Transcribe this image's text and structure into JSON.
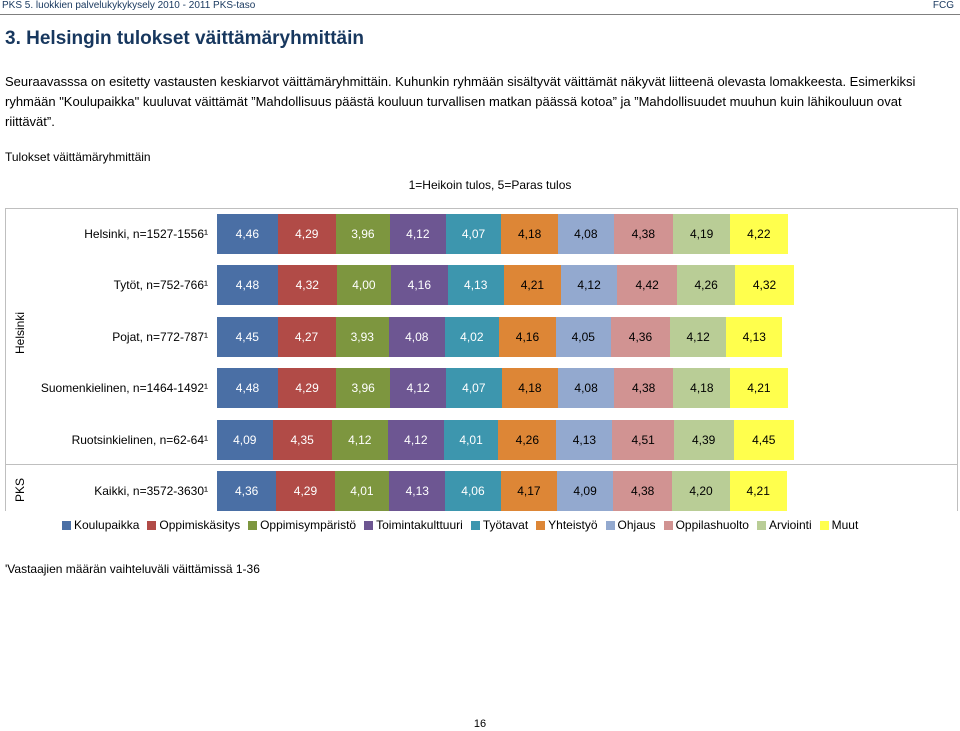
{
  "header": {
    "left_text": "PKS 5. luokkien palvelukykykysely 2010 - 2011 PKS-taso",
    "right_text": "FCG"
  },
  "heading": "3. Helsingin tulokset väittämäryhmittäin",
  "intro_lines": [
    "Seuraavasssa on esitetty vastausten keskiarvot väittämäryhmittäin. Kuhunkin ryhmään sisältyvät väittämät näkyvät liitteenä olevasta lomakkeesta. Esimerkiksi",
    "ryhmään \"Koulupaikka\" kuuluvat väittämät ”Mahdollisuus päästä kouluun turvallisen matkan päässä kotoa” ja ”Mahdollisuudet muuhun kuin lähikouluun ovat",
    "riittävät”."
  ],
  "chart_data": {
    "type": "bar",
    "orientation": "horizontal",
    "stacked": true,
    "title": "Tulokset väittämäryhmittäin",
    "subtitle": "1=Heikoin tulos, 5=Paras tulos",
    "groups": [
      {
        "label": "Helsinki",
        "rows": [
          0,
          1,
          2,
          3,
          4
        ]
      },
      {
        "label": "PKS",
        "rows": [
          5
        ]
      }
    ],
    "categories": [
      "Helsinki, n=1527-1556¹",
      "Tytöt, n=752-766¹",
      "Pojat, n=772-787¹",
      "Suomenkielinen, n=1464-1492¹",
      "Ruotsinkielinen, n=62-64¹",
      "Kaikki, n=3572-3630¹"
    ],
    "series": [
      {
        "name": "Koulupaikka",
        "color": "#4a6fa5",
        "values": [
          4.46,
          4.48,
          4.45,
          4.48,
          4.09,
          4.36
        ],
        "labels": [
          "4,46",
          "4,48",
          "4,45",
          "4,48",
          "4,09",
          "4,36"
        ]
      },
      {
        "name": "Oppimiskäsitys",
        "color": "#b14b47",
        "values": [
          4.29,
          4.32,
          4.27,
          4.29,
          4.35,
          4.29
        ],
        "labels": [
          "4,29",
          "4,32",
          "4,27",
          "4,29",
          "4,35",
          "4,29"
        ]
      },
      {
        "name": "Oppimisympäristö",
        "color": "#7d963f",
        "values": [
          3.96,
          4.0,
          3.93,
          3.96,
          4.12,
          4.01
        ],
        "labels": [
          "3,96",
          "4,00",
          "3,93",
          "3,96",
          "4,12",
          "4,01"
        ]
      },
      {
        "name": "Toimintakulttuuri",
        "color": "#6d5692",
        "values": [
          4.12,
          4.16,
          4.08,
          4.12,
          4.12,
          4.13
        ],
        "labels": [
          "4,12",
          "4,16",
          "4,08",
          "4,12",
          "4,12",
          "4,13"
        ]
      },
      {
        "name": "Työtavat",
        "color": "#3d96ae",
        "values": [
          4.07,
          4.13,
          4.02,
          4.07,
          4.01,
          4.06
        ],
        "labels": [
          "4,07",
          "4,13",
          "4,02",
          "4,07",
          "4,01",
          "4,06"
        ]
      },
      {
        "name": "Yhteistyö",
        "color": "#dd8636",
        "values": [
          4.18,
          4.21,
          4.16,
          4.18,
          4.26,
          4.17
        ],
        "labels": [
          "4,18",
          "4,21",
          "4,16",
          "4,18",
          "4,26",
          "4,17"
        ]
      },
      {
        "name": "Ohjaus",
        "color": "#93a9cf",
        "values": [
          4.08,
          4.12,
          4.05,
          4.08,
          4.13,
          4.09
        ],
        "labels": [
          "4,08",
          "4,12",
          "4,05",
          "4,08",
          "4,13",
          "4,09"
        ]
      },
      {
        "name": "Oppilashuolto",
        "color": "#d19392",
        "values": [
          4.38,
          4.42,
          4.36,
          4.38,
          4.51,
          4.38
        ],
        "labels": [
          "4,38",
          "4,42",
          "4,36",
          "4,38",
          "4,51",
          "4,38"
        ]
      },
      {
        "name": "Arviointi",
        "color": "#b9cd96",
        "values": [
          4.19,
          4.26,
          4.12,
          4.18,
          4.39,
          4.2
        ],
        "labels": [
          "4,19",
          "4,26",
          "4,12",
          "4,18",
          "4,39",
          "4,20"
        ]
      },
      {
        "name": "Muut",
        "color": "#ffff4d",
        "values": [
          4.22,
          4.32,
          4.13,
          4.21,
          4.45,
          4.21
        ],
        "labels": [
          "4,22",
          "4,32",
          "4,13",
          "4,21",
          "4,45",
          "4,21"
        ]
      }
    ],
    "legend_position": "bottom",
    "grid": false
  },
  "footnote": "'Vastaajien määrän vaihteluväli väittämissä 1-36",
  "page_number": "16"
}
